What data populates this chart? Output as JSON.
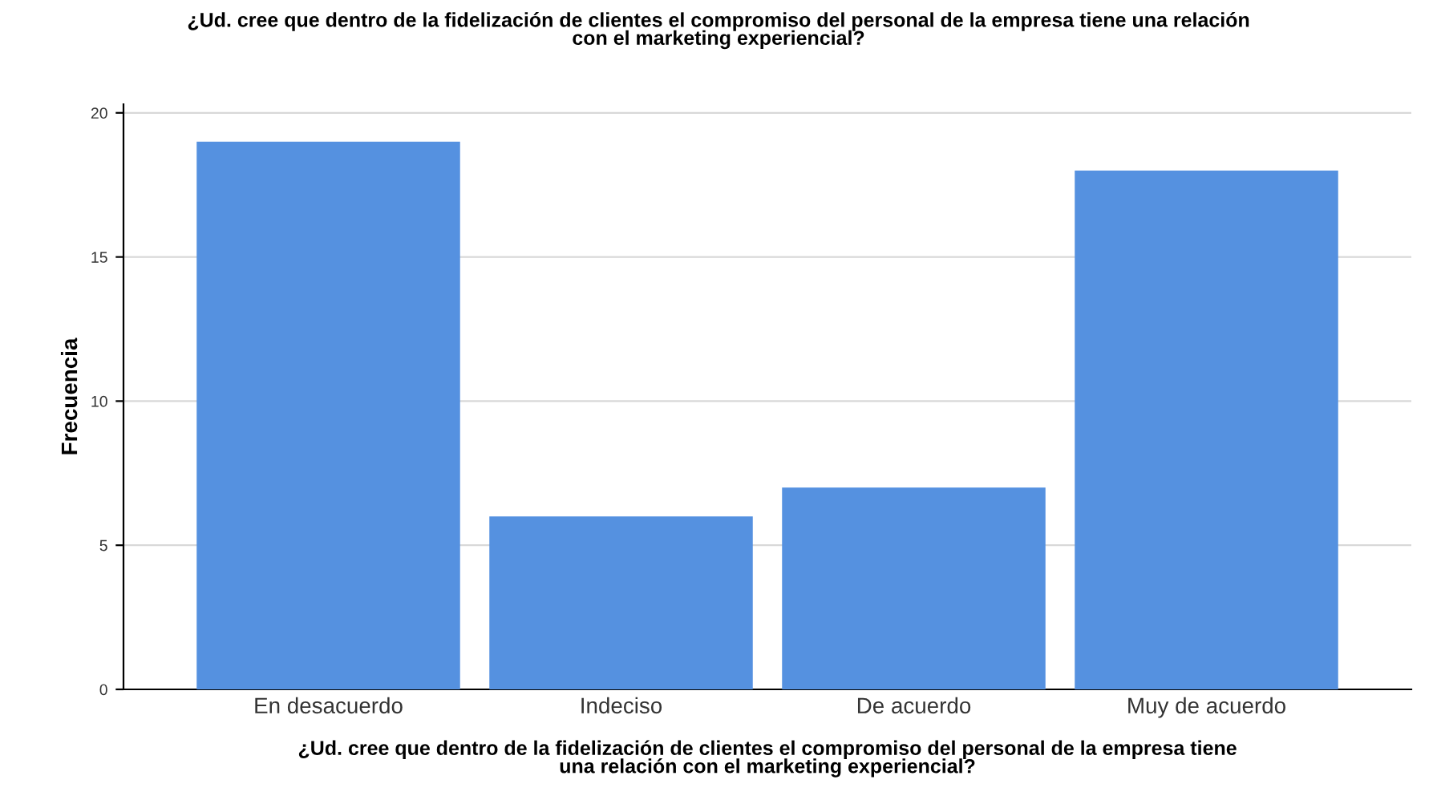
{
  "chart_data": {
    "type": "bar",
    "title": "¿Ud. cree que dentro de la fidelización de clientes el compromiso del personal de la empresa tiene una relación\ncon el marketing experiencial?",
    "xlabel": "¿Ud. cree que dentro de la fidelización de clientes el compromiso del personal de la empresa tiene\nuna relación con el marketing experiencial?",
    "ylabel": "Frecuencia",
    "categories": [
      "En desacuerdo",
      "Indeciso",
      "De acuerdo",
      "Muy de acuerdo"
    ],
    "values": [
      19,
      6,
      7,
      18
    ],
    "color": "#5591e0",
    "ylim": [
      0,
      20.3
    ],
    "yticks": [
      0,
      5,
      10,
      15,
      20
    ],
    "grid": "y",
    "legend": false
  }
}
